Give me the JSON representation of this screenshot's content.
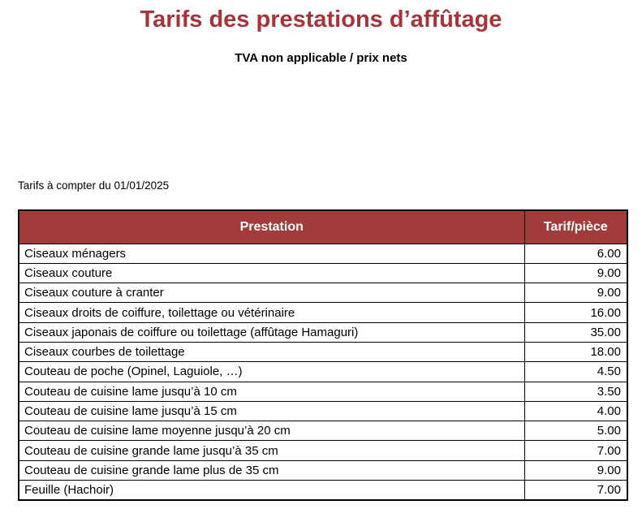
{
  "page": {
    "title": "Tarifs des prestations d’affûtage",
    "subtitle": "TVA non applicable / prix nets",
    "effective_date_note": "Tarifs à compter du 01/01/2025"
  },
  "colors": {
    "title_red": "#A5353C",
    "table_header_bg": "#A23B3B",
    "table_header_text": "#FFFFFF",
    "table_border": "#000000"
  },
  "table": {
    "columns": {
      "prestation": "Prestation",
      "tarif": "Tarif/pièce"
    },
    "rows": [
      {
        "prestation": "Ciseaux ménagers",
        "tarif": "6.00"
      },
      {
        "prestation": "Ciseaux couture",
        "tarif": "9.00"
      },
      {
        "prestation": "Ciseaux couture à cranter",
        "tarif": "9.00"
      },
      {
        "prestation": "Ciseaux droits de coiffure, toilettage ou vétérinaire",
        "tarif": "16.00"
      },
      {
        "prestation": "Ciseaux japonais de coiffure ou toilettage (affûtage Hamaguri)",
        "tarif": "35.00"
      },
      {
        "prestation": "Ciseaux courbes de toilettage",
        "tarif": "18.00"
      },
      {
        "prestation": "Couteau de poche (Opinel, Laguiole, …)",
        "tarif": "4.50"
      },
      {
        "prestation": "Couteau de cuisine lame jusqu’à 10 cm",
        "tarif": "3.50"
      },
      {
        "prestation": "Couteau de cuisine lame jusqu’à 15 cm",
        "tarif": "4.00"
      },
      {
        "prestation": "Couteau de cuisine lame moyenne jusqu’à 20 cm",
        "tarif": "5.00"
      },
      {
        "prestation": "Couteau de cuisine grande lame jusqu’à 35 cm",
        "tarif": "7.00"
      },
      {
        "prestation": "Couteau de cuisine grande lame plus de 35 cm",
        "tarif": "9.00"
      },
      {
        "prestation": "Feuille (Hachoir)",
        "tarif": "7.00"
      }
    ]
  }
}
